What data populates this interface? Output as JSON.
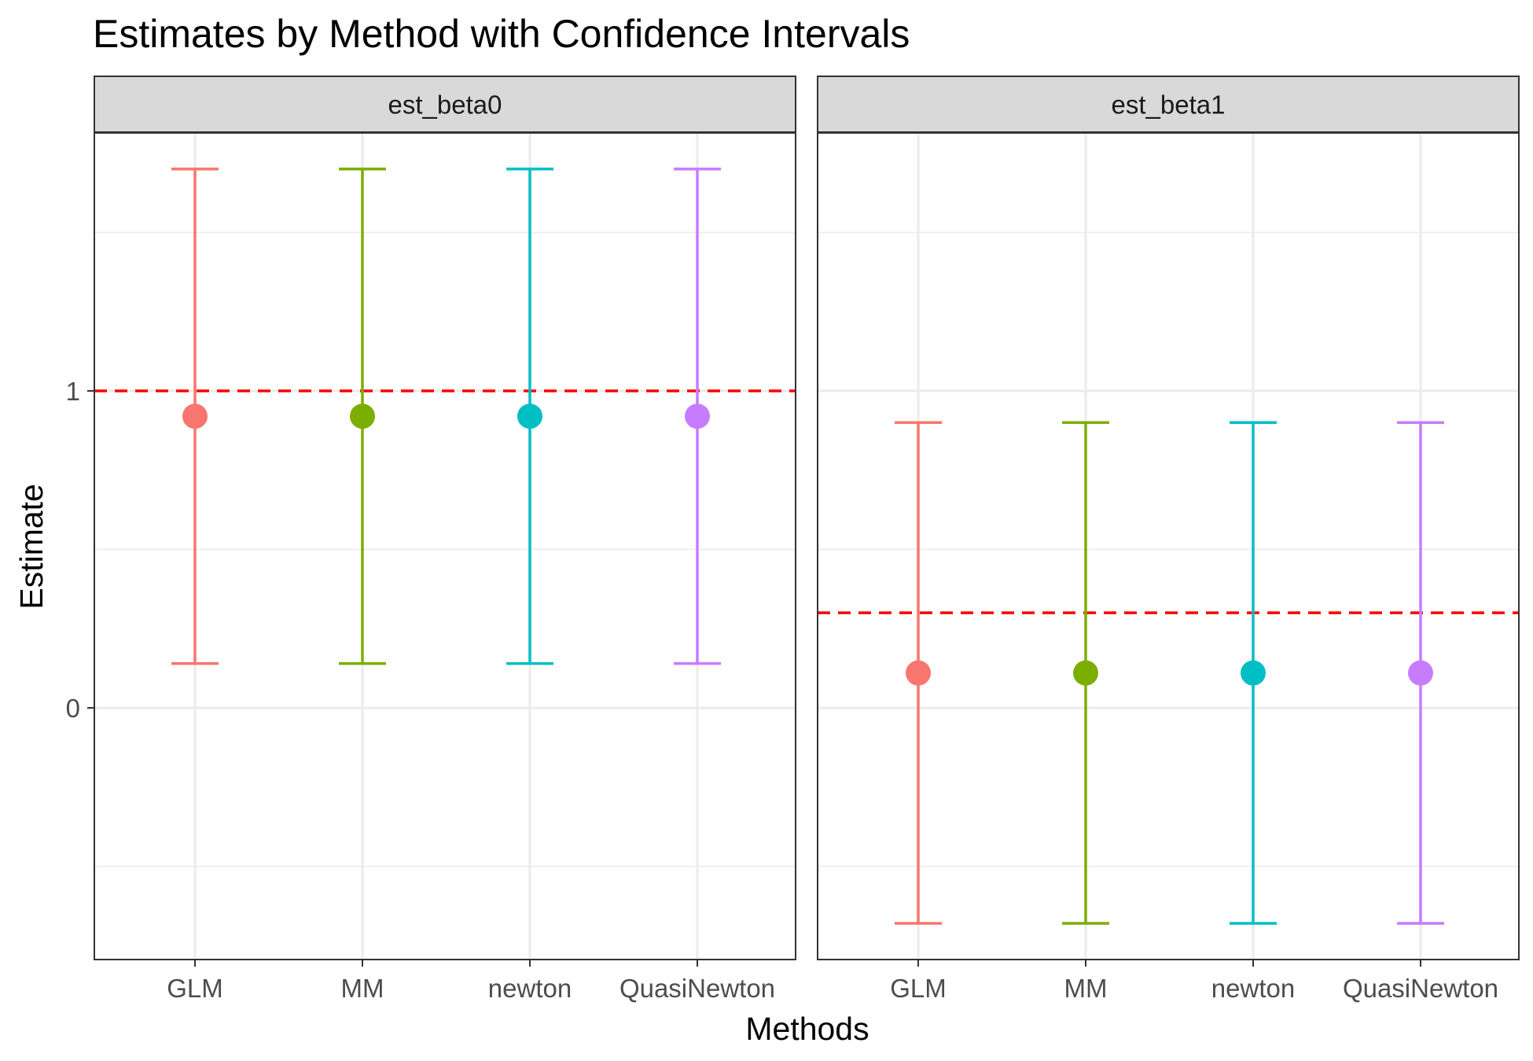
{
  "chart_data": {
    "type": "errorbar",
    "title": "Estimates by Method with Confidence Intervals",
    "xlabel": "Methods",
    "ylabel": "Estimate",
    "ylim": [
      -0.8,
      1.82
    ],
    "y_ticks": [
      0,
      1
    ],
    "grid": true,
    "legend": "none",
    "categories": [
      "GLM",
      "MM",
      "newton",
      "QuasiNewton"
    ],
    "colors": {
      "GLM": "#F8766D",
      "MM": "#7CAE00",
      "newton": "#00BFC4",
      "QuasiNewton": "#C77CFF",
      "reference_line": "#FF0000"
    },
    "facets": [
      {
        "label": "est_beta0",
        "reference_line": 1.0,
        "points": [
          {
            "method": "GLM",
            "estimate": 0.92,
            "lower": 0.14,
            "upper": 1.7
          },
          {
            "method": "MM",
            "estimate": 0.92,
            "lower": 0.14,
            "upper": 1.7
          },
          {
            "method": "newton",
            "estimate": 0.92,
            "lower": 0.14,
            "upper": 1.7
          },
          {
            "method": "QuasiNewton",
            "estimate": 0.92,
            "lower": 0.14,
            "upper": 1.7
          }
        ]
      },
      {
        "label": "est_beta1",
        "reference_line": 0.3,
        "points": [
          {
            "method": "GLM",
            "estimate": 0.11,
            "lower": -0.68,
            "upper": 0.9
          },
          {
            "method": "MM",
            "estimate": 0.11,
            "lower": -0.68,
            "upper": 0.9
          },
          {
            "method": "newton",
            "estimate": 0.11,
            "lower": -0.68,
            "upper": 0.9
          },
          {
            "method": "QuasiNewton",
            "estimate": 0.11,
            "lower": -0.68,
            "upper": 0.9
          }
        ]
      }
    ]
  }
}
